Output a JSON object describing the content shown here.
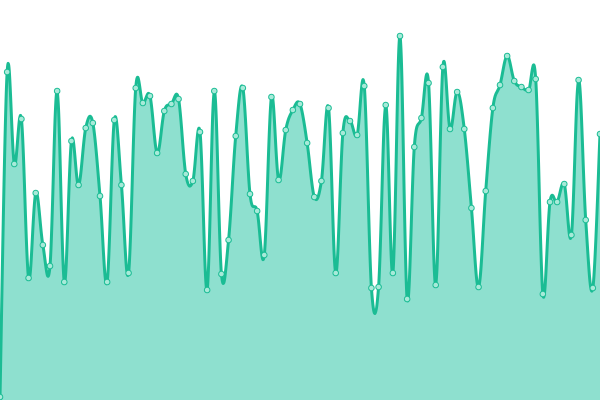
{
  "chart_data": {
    "type": "area",
    "title": "",
    "xlabel": "",
    "ylabel": "",
    "ylim": [
      0,
      400
    ],
    "grid": false,
    "smooth": true,
    "colors": {
      "line": "#1bbc94",
      "fill": "#8ee0cf",
      "point_fill": "#a8ead9"
    },
    "series": [
      {
        "values": [
          3,
          328,
          236,
          281,
          122,
          207,
          155,
          134,
          309,
          118,
          259,
          215,
          272,
          277,
          204,
          118,
          280,
          215,
          127,
          312,
          297,
          304,
          247,
          289,
          296,
          301,
          226,
          219,
          268,
          110,
          309,
          126,
          160,
          264,
          312,
          206,
          189,
          145,
          303,
          220,
          270,
          290,
          296,
          257,
          203,
          219,
          292,
          127,
          267,
          279,
          265,
          314,
          112,
          113,
          295,
          127,
          364,
          101,
          253,
          282,
          317,
          115,
          333,
          271,
          308,
          271,
          192,
          113,
          209,
          292,
          315,
          344,
          319,
          313,
          310,
          321,
          106,
          198,
          198,
          216,
          165,
          320,
          180,
          112,
          266
        ]
      }
    ]
  }
}
